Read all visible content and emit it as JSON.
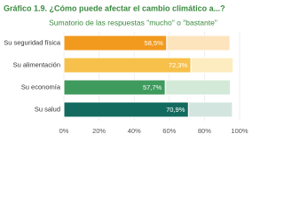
{
  "chart_data": {
    "type": "stacked-bar-horizontal",
    "title": "Gráfico 1.9. ¿Cómo puede afectar el cambio climático a...?",
    "subtitle": "Sumatorio de las respuestas \"mucho\" o \"bastante\"",
    "categories": [
      "Su seguridad física",
      "Su alimentación",
      "Su economía",
      "Su salud"
    ],
    "series": [
      {
        "colors": [
          "#f29a1e",
          "#f7c04a",
          "#3f9a5e",
          "#136b5f"
        ],
        "values": [
          58.5,
          72.3,
          57.7,
          70.9
        ],
        "value_labels": [
          "58,5%",
          "72,3%",
          "57,7%",
          "70,9%"
        ]
      },
      {
        "colors": [
          "#fde4bd",
          "#fdecbf",
          "#d3ead9",
          "#d2e5df"
        ],
        "values": [
          36,
          24,
          37,
          25
        ]
      }
    ],
    "xlim": [
      0,
      100
    ],
    "xticks": [
      {
        "value": 0,
        "label": "0%"
      },
      {
        "value": 20,
        "label": "20%"
      },
      {
        "value": 40,
        "label": "40%"
      },
      {
        "value": 60,
        "label": "60%"
      },
      {
        "value": 80,
        "label": "80%"
      },
      {
        "value": 100,
        "label": "100%"
      }
    ],
    "grid": true
  }
}
